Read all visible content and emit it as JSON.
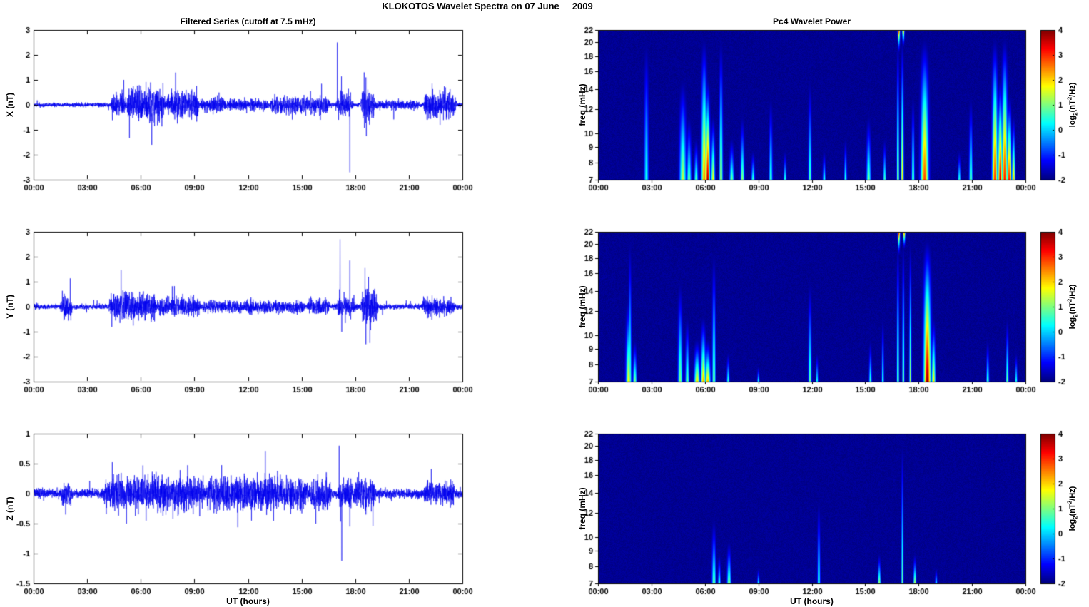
{
  "figure": {
    "title": "KLOKOTOS Wavelet Spectra on 07 June     2009",
    "background_color": "#ffffff"
  },
  "shared_axes": {
    "xlabel": "UT (hours)",
    "x_range_hours": [
      0,
      24
    ],
    "x_ticks_hours": [
      0,
      3,
      6,
      9,
      12,
      15,
      18,
      21,
      24
    ],
    "x_tick_labels": [
      "00:00",
      "03:00",
      "06:00",
      "09:00",
      "12:00",
      "15:00",
      "18:00",
      "21:00",
      "00:00"
    ]
  },
  "colorbar": {
    "range": [
      -2,
      4
    ],
    "ticks": [
      4,
      3,
      2,
      1,
      0,
      -1,
      -2
    ],
    "colormap": "jet",
    "label_parts": {
      "pre": "log",
      "sub": "2",
      "mid": "(nT",
      "sup": "2",
      "post": "/Hz)"
    }
  },
  "chart_data": [
    {
      "id": "ts_x",
      "type": "line",
      "title": "Filtered Series (cutoff at 7.5 mHz)",
      "ylabel": "X (nT)",
      "ylim": [
        -3,
        3
      ],
      "yticks": [
        3,
        2,
        1,
        0,
        -1,
        -2,
        -3
      ],
      "x_range_hours": [
        0,
        24
      ],
      "line_color": "#0000ee",
      "noise_base": 0.04,
      "bursts": [
        {
          "s": 4.3,
          "e": 5.2,
          "a": 0.18
        },
        {
          "s": 5.2,
          "e": 7.4,
          "a": 0.3
        },
        {
          "s": 7.4,
          "e": 9.3,
          "a": 0.22
        },
        {
          "s": 9.3,
          "e": 10.8,
          "a": 0.1
        },
        {
          "s": 10.8,
          "e": 13.2,
          "a": 0.07
        },
        {
          "s": 13.2,
          "e": 16.6,
          "a": 0.12
        },
        {
          "s": 16.9,
          "e": 17.9,
          "a": 0.15
        },
        {
          "s": 18.3,
          "e": 19.1,
          "a": 0.32
        },
        {
          "s": 19.1,
          "e": 21.6,
          "a": 0.05
        },
        {
          "s": 21.8,
          "e": 23.7,
          "a": 0.22
        }
      ],
      "spikes": [
        {
          "t": 6.55,
          "a": 0.9
        },
        {
          "t": 6.62,
          "a": -1.6
        },
        {
          "t": 8.05,
          "a": -0.75
        },
        {
          "t": 15.5,
          "a": 0.55
        },
        {
          "t": 16.05,
          "a": -0.6
        },
        {
          "t": 17.0,
          "a": 2.5
        },
        {
          "t": 17.07,
          "a": -0.6
        },
        {
          "t": 17.7,
          "a": -2.7
        },
        {
          "t": 17.74,
          "a": 0.5
        },
        {
          "t": 18.5,
          "a": 1.3
        },
        {
          "t": 18.62,
          "a": -1.25
        },
        {
          "t": 22.3,
          "a": 0.85
        },
        {
          "t": 22.75,
          "a": -0.8
        },
        {
          "t": 23.05,
          "a": 0.7
        }
      ]
    },
    {
      "id": "ts_y",
      "type": "line",
      "title": "",
      "ylabel": "Y (nT)",
      "ylim": [
        -3,
        3
      ],
      "yticks": [
        3,
        2,
        1,
        0,
        -1,
        -2,
        -3
      ],
      "x_range_hours": [
        0,
        24
      ],
      "line_color": "#0000ee",
      "noise_base": 0.05,
      "bursts": [
        {
          "s": 1.5,
          "e": 2.2,
          "a": 0.22
        },
        {
          "s": 4.2,
          "e": 6.9,
          "a": 0.22
        },
        {
          "s": 6.9,
          "e": 9.4,
          "a": 0.12
        },
        {
          "s": 9.4,
          "e": 15.2,
          "a": 0.07
        },
        {
          "s": 15.3,
          "e": 16.6,
          "a": 0.12
        },
        {
          "s": 16.9,
          "e": 18.1,
          "a": 0.12
        },
        {
          "s": 18.3,
          "e": 19.3,
          "a": 0.35
        },
        {
          "s": 21.7,
          "e": 23.6,
          "a": 0.12
        }
      ],
      "spikes": [
        {
          "t": 1.7,
          "a": -0.55
        },
        {
          "t": 5.0,
          "a": 0.65
        },
        {
          "t": 5.3,
          "a": -0.5
        },
        {
          "t": 6.1,
          "a": 0.5
        },
        {
          "t": 17.15,
          "a": 2.7
        },
        {
          "t": 17.25,
          "a": -1.0
        },
        {
          "t": 17.7,
          "a": 1.85
        },
        {
          "t": 17.75,
          "a": -0.5
        },
        {
          "t": 18.55,
          "a": 1.55
        },
        {
          "t": 18.6,
          "a": -1.5
        },
        {
          "t": 18.75,
          "a": 1.2
        },
        {
          "t": 18.82,
          "a": -1.45
        },
        {
          "t": 22.3,
          "a": 0.45
        },
        {
          "t": 23.0,
          "a": -0.4
        }
      ]
    },
    {
      "id": "ts_z",
      "type": "line",
      "title": "",
      "ylabel": "Z (nT)",
      "ylim": [
        -1.5,
        1
      ],
      "yticks": [
        1,
        0.5,
        0,
        -0.5,
        -1,
        -1.5
      ],
      "x_range_hours": [
        0,
        24
      ],
      "line_color": "#0000ee",
      "noise_base": 0.035,
      "bursts": [
        {
          "s": 1.5,
          "e": 2.2,
          "a": 0.06
        },
        {
          "s": 3.9,
          "e": 9.6,
          "a": 0.1
        },
        {
          "s": 9.6,
          "e": 15.4,
          "a": 0.1
        },
        {
          "s": 15.4,
          "e": 16.7,
          "a": 0.1
        },
        {
          "s": 17.0,
          "e": 19.2,
          "a": 0.08
        },
        {
          "s": 21.8,
          "e": 23.6,
          "a": 0.06
        }
      ],
      "spikes": [
        {
          "t": 1.8,
          "a": -0.35
        },
        {
          "t": 5.2,
          "a": -0.5
        },
        {
          "t": 6.3,
          "a": -0.45
        },
        {
          "t": 7.0,
          "a": 0.3
        },
        {
          "t": 7.8,
          "a": -0.42
        },
        {
          "t": 9.3,
          "a": -0.38
        },
        {
          "t": 12.2,
          "a": -0.45
        },
        {
          "t": 13.5,
          "a": 0.3
        },
        {
          "t": 15.8,
          "a": -0.5
        },
        {
          "t": 17.1,
          "a": 0.8
        },
        {
          "t": 17.25,
          "a": -1.12
        },
        {
          "t": 17.7,
          "a": -0.55
        },
        {
          "t": 18.6,
          "a": -0.35
        },
        {
          "t": 18.9,
          "a": -0.3
        }
      ]
    },
    {
      "id": "sp_x",
      "type": "heatmap",
      "title": "Pc4 Wavelet Power",
      "ylabel": "freq (mHz)",
      "freq_range_mhz": [
        7,
        22
      ],
      "freq_scale": "log",
      "freq_ticks": [
        22,
        20,
        18,
        16,
        14,
        12,
        10,
        9,
        8,
        7
      ],
      "background_power": -2,
      "streaks": [
        {
          "t": 2.7,
          "w": 0.08,
          "f_lo": 7,
          "f_hi": 22,
          "p": 0.4
        },
        {
          "t": 4.75,
          "w": 0.12,
          "f_lo": 7,
          "f_hi": 16,
          "p": 1.4
        },
        {
          "t": 5.1,
          "w": 0.08,
          "f_lo": 7,
          "f_hi": 12,
          "p": 1.0
        },
        {
          "t": 5.5,
          "w": 0.07,
          "f_lo": 7,
          "f_hi": 10,
          "p": 0.8
        },
        {
          "t": 5.95,
          "w": 0.1,
          "f_lo": 7,
          "f_hi": 22,
          "p": 2.6
        },
        {
          "t": 6.15,
          "w": 0.08,
          "f_lo": 7,
          "f_hi": 16,
          "p": 3.9
        },
        {
          "t": 6.45,
          "w": 0.07,
          "f_lo": 7,
          "f_hi": 12,
          "p": 1.8
        },
        {
          "t": 6.9,
          "w": 0.06,
          "f_lo": 7,
          "f_hi": 22,
          "p": 1.6
        },
        {
          "t": 7.5,
          "w": 0.08,
          "f_lo": 7,
          "f_hi": 10,
          "p": 1.0
        },
        {
          "t": 8.1,
          "w": 0.07,
          "f_lo": 7,
          "f_hi": 12,
          "p": 1.2
        },
        {
          "t": 8.7,
          "w": 0.06,
          "f_lo": 7,
          "f_hi": 9,
          "p": 0.7
        },
        {
          "t": 9.7,
          "w": 0.06,
          "f_lo": 7,
          "f_hi": 14,
          "p": 0.8
        },
        {
          "t": 10.5,
          "w": 0.05,
          "f_lo": 7,
          "f_hi": 9,
          "p": 0.6
        },
        {
          "t": 11.9,
          "w": 0.06,
          "f_lo": 7,
          "f_hi": 16,
          "p": 0.8
        },
        {
          "t": 12.7,
          "w": 0.05,
          "f_lo": 7,
          "f_hi": 9,
          "p": 0.6
        },
        {
          "t": 13.9,
          "w": 0.05,
          "f_lo": 7,
          "f_hi": 10,
          "p": 0.6
        },
        {
          "t": 15.2,
          "w": 0.08,
          "f_lo": 7,
          "f_hi": 12,
          "p": 1.0
        },
        {
          "t": 16.1,
          "w": 0.05,
          "f_lo": 7,
          "f_hi": 10,
          "p": 0.8
        },
        {
          "t": 16.85,
          "w": 0.04,
          "f_lo": 7,
          "f_hi": 22,
          "p": 1.8
        },
        {
          "t": 16.9,
          "w": 0.04,
          "f_lo": 18,
          "f_hi": 22,
          "p": 3.5,
          "rev": true
        },
        {
          "t": 17.1,
          "w": 0.05,
          "f_lo": 7,
          "f_hi": 22,
          "p": 2.0
        },
        {
          "t": 17.15,
          "w": 0.04,
          "f_lo": 19,
          "f_hi": 22,
          "p": 3.0,
          "rev": true
        },
        {
          "t": 17.7,
          "w": 0.05,
          "f_lo": 7,
          "f_hi": 14,
          "p": 1.2
        },
        {
          "t": 18.35,
          "w": 0.14,
          "f_lo": 7,
          "f_hi": 22,
          "p": 2.9
        },
        {
          "t": 20.3,
          "w": 0.05,
          "f_lo": 7,
          "f_hi": 9,
          "p": 0.6
        },
        {
          "t": 20.95,
          "w": 0.06,
          "f_lo": 7,
          "f_hi": 14,
          "p": 1.1
        },
        {
          "t": 22.3,
          "w": 0.1,
          "f_lo": 7,
          "f_hi": 22,
          "p": 3.0
        },
        {
          "t": 22.6,
          "w": 0.08,
          "f_lo": 7,
          "f_hi": 16,
          "p": 3.6
        },
        {
          "t": 22.85,
          "w": 0.1,
          "f_lo": 7,
          "f_hi": 22,
          "p": 3.2
        },
        {
          "t": 23.1,
          "w": 0.08,
          "f_lo": 7,
          "f_hi": 14,
          "p": 3.3
        },
        {
          "t": 23.35,
          "w": 0.06,
          "f_lo": 7,
          "f_hi": 12,
          "p": 2.2
        }
      ]
    },
    {
      "id": "sp_y",
      "type": "heatmap",
      "title": "",
      "ylabel": "freq (mHz)",
      "freq_range_mhz": [
        7,
        22
      ],
      "freq_scale": "log",
      "freq_ticks": [
        22,
        20,
        18,
        16,
        14,
        12,
        10,
        9,
        8,
        7
      ],
      "background_power": -2,
      "streaks": [
        {
          "t": 1.7,
          "w": 0.1,
          "f_lo": 7,
          "f_hi": 14,
          "p": 1.8
        },
        {
          "t": 1.78,
          "w": 0.05,
          "f_lo": 7,
          "f_hi": 22,
          "p": 0.9
        },
        {
          "t": 2.05,
          "w": 0.07,
          "f_lo": 7,
          "f_hi": 10,
          "p": 1.1
        },
        {
          "t": 4.6,
          "w": 0.08,
          "f_lo": 7,
          "f_hi": 16,
          "p": 1.1
        },
        {
          "t": 5.0,
          "w": 0.07,
          "f_lo": 7,
          "f_hi": 12,
          "p": 1.0
        },
        {
          "t": 5.55,
          "w": 0.1,
          "f_lo": 7,
          "f_hi": 10,
          "p": 2.1
        },
        {
          "t": 5.9,
          "w": 0.09,
          "f_lo": 7,
          "f_hi": 12,
          "p": 2.3
        },
        {
          "t": 6.15,
          "w": 0.1,
          "f_lo": 7,
          "f_hi": 10,
          "p": 2.2
        },
        {
          "t": 6.5,
          "w": 0.06,
          "f_lo": 7,
          "f_hi": 20,
          "p": 1.2
        },
        {
          "t": 7.3,
          "w": 0.05,
          "f_lo": 7,
          "f_hi": 9,
          "p": 0.7
        },
        {
          "t": 9.0,
          "w": 0.04,
          "f_lo": 7,
          "f_hi": 8,
          "p": 0.5
        },
        {
          "t": 11.9,
          "w": 0.06,
          "f_lo": 7,
          "f_hi": 16,
          "p": 0.9
        },
        {
          "t": 12.3,
          "w": 0.04,
          "f_lo": 7,
          "f_hi": 9,
          "p": 0.6
        },
        {
          "t": 15.3,
          "w": 0.05,
          "f_lo": 7,
          "f_hi": 10,
          "p": 0.7
        },
        {
          "t": 16.0,
          "w": 0.04,
          "f_lo": 7,
          "f_hi": 12,
          "p": 0.8
        },
        {
          "t": 16.85,
          "w": 0.04,
          "f_lo": 7,
          "f_hi": 22,
          "p": 1.4
        },
        {
          "t": 16.9,
          "w": 0.04,
          "f_lo": 18,
          "f_hi": 22,
          "p": 4.0,
          "rev": true
        },
        {
          "t": 17.15,
          "w": 0.04,
          "f_lo": 7,
          "f_hi": 22,
          "p": 1.3
        },
        {
          "t": 17.2,
          "w": 0.04,
          "f_lo": 19,
          "f_hi": 22,
          "p": 3.2,
          "rev": true
        },
        {
          "t": 17.55,
          "w": 0.04,
          "f_lo": 7,
          "f_hi": 22,
          "p": 1.4
        },
        {
          "t": 18.5,
          "w": 0.13,
          "f_lo": 7,
          "f_hi": 22,
          "p": 3.9
        },
        {
          "t": 18.85,
          "w": 0.07,
          "f_lo": 7,
          "f_hi": 12,
          "p": 2.0
        },
        {
          "t": 21.9,
          "w": 0.05,
          "f_lo": 7,
          "f_hi": 10,
          "p": 0.9
        },
        {
          "t": 23.0,
          "w": 0.05,
          "f_lo": 7,
          "f_hi": 12,
          "p": 1.0
        },
        {
          "t": 23.5,
          "w": 0.04,
          "f_lo": 7,
          "f_hi": 9,
          "p": 0.7
        }
      ]
    },
    {
      "id": "sp_z",
      "type": "heatmap",
      "title": "",
      "ylabel": "freq (mHz)",
      "freq_range_mhz": [
        7,
        22
      ],
      "freq_scale": "log",
      "freq_ticks": [
        22,
        20,
        18,
        16,
        14,
        12,
        10,
        9,
        8,
        7
      ],
      "background_power": -2,
      "streaks": [
        {
          "t": 6.5,
          "w": 0.07,
          "f_lo": 7,
          "f_hi": 12,
          "p": 1.1
        },
        {
          "t": 6.8,
          "w": 0.05,
          "f_lo": 7,
          "f_hi": 9,
          "p": 0.7
        },
        {
          "t": 7.35,
          "w": 0.07,
          "f_lo": 7,
          "f_hi": 10,
          "p": 1.3
        },
        {
          "t": 9.0,
          "w": 0.04,
          "f_lo": 7,
          "f_hi": 8,
          "p": 0.4
        },
        {
          "t": 12.4,
          "w": 0.05,
          "f_lo": 7,
          "f_hi": 14,
          "p": 0.8
        },
        {
          "t": 15.8,
          "w": 0.05,
          "f_lo": 7,
          "f_hi": 9,
          "p": 1.4
        },
        {
          "t": 17.1,
          "w": 0.04,
          "f_lo": 7,
          "f_hi": 22,
          "p": 0.9
        },
        {
          "t": 17.8,
          "w": 0.05,
          "f_lo": 7,
          "f_hi": 9,
          "p": 1.5
        },
        {
          "t": 19.0,
          "w": 0.04,
          "f_lo": 7,
          "f_hi": 8,
          "p": 0.4
        }
      ]
    }
  ]
}
